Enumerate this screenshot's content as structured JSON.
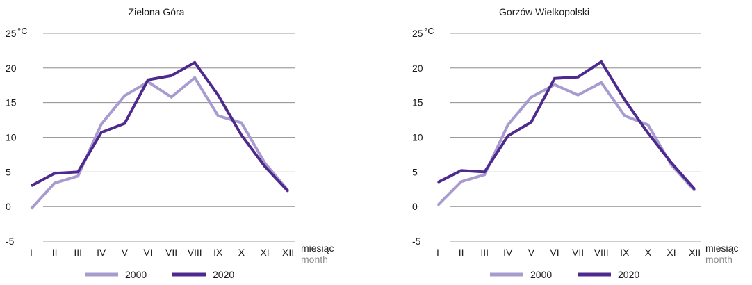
{
  "chart_data": [
    {
      "type": "line",
      "title": "Zielona Góra",
      "y_unit": "°C",
      "xlabel": "miesiąc",
      "xlabel_secondary": "month",
      "ylim": [
        -5,
        25
      ],
      "y_ticks": [
        "-5",
        "0",
        "5",
        "10",
        "15",
        "20",
        "25"
      ],
      "categories": [
        "I",
        "II",
        "III",
        "IV",
        "V",
        "VI",
        "VII",
        "VIII",
        "IX",
        "X",
        "XI",
        "XII"
      ],
      "grid": true,
      "legend_position": "bottom",
      "series": [
        {
          "name": "2000",
          "color": "#a89bd0",
          "values": [
            -0.3,
            3.4,
            4.4,
            11.9,
            16.0,
            18.0,
            15.8,
            18.6,
            13.1,
            12.1,
            6.3,
            2.3
          ]
        },
        {
          "name": "2020",
          "color": "#4e2a8e",
          "values": [
            3.0,
            4.8,
            5.0,
            10.7,
            12.0,
            18.3,
            18.9,
            20.8,
            16.1,
            10.3,
            5.8,
            2.2
          ]
        }
      ]
    },
    {
      "type": "line",
      "title": "Gorzów Wielkopolski",
      "y_unit": "°C",
      "xlabel": "miesiąc",
      "xlabel_secondary": "month",
      "ylim": [
        -5,
        25
      ],
      "y_ticks": [
        "-5",
        "0",
        "5",
        "10",
        "15",
        "20",
        "25"
      ],
      "categories": [
        "I",
        "II",
        "III",
        "IV",
        "V",
        "VI",
        "VII",
        "VIII",
        "IX",
        "X",
        "XI",
        "XII"
      ],
      "grid": true,
      "legend_position": "bottom",
      "series": [
        {
          "name": "2000",
          "color": "#a89bd0",
          "values": [
            0.2,
            3.6,
            4.6,
            11.8,
            15.8,
            17.6,
            16.1,
            17.9,
            13.1,
            11.8,
            6.0,
            2.3
          ]
        },
        {
          "name": "2020",
          "color": "#4e2a8e",
          "values": [
            3.5,
            5.2,
            5.0,
            10.2,
            12.2,
            18.5,
            18.7,
            20.9,
            15.4,
            10.6,
            6.3,
            2.5
          ]
        }
      ]
    }
  ]
}
